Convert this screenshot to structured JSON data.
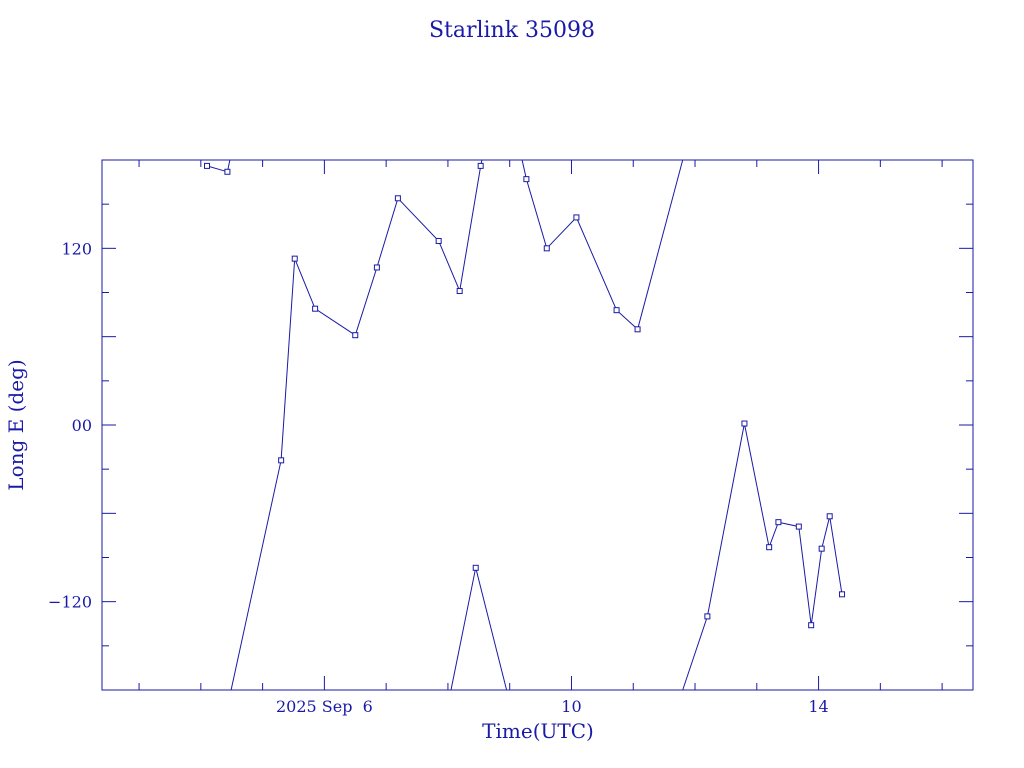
{
  "chart_data": {
    "type": "line",
    "title": "Starlink 35098",
    "xlabel": "Time(UTC)",
    "ylabel": "Long E (deg)",
    "x_unit": "days (Sep 2025, UTC)",
    "xlim": [
      2.4,
      16.5
    ],
    "ylim": [
      -180,
      180
    ],
    "x_ticks": [
      {
        "value": 6,
        "label": "2025 Sep  6"
      },
      {
        "value": 10,
        "label": "10"
      },
      {
        "value": 14,
        "label": "14"
      }
    ],
    "y_ticks": [
      {
        "value": 120,
        "label": "120"
      },
      {
        "value": 0,
        "label": "00"
      },
      {
        "value": -120,
        "label": "−120"
      }
    ],
    "grid": false,
    "color": "#1a1aa8",
    "series": [
      {
        "points": [
          [
            4.1,
            176
          ],
          [
            4.43,
            172
          ],
          [
            4.47,
            180
          ],
          [
            4.49,
            -180
          ],
          [
            5.3,
            -24
          ],
          [
            5.52,
            113
          ],
          [
            5.85,
            79
          ],
          [
            6.5,
            61
          ],
          [
            6.85,
            107
          ],
          [
            7.19,
            154
          ],
          [
            7.85,
            125
          ],
          [
            8.19,
            91
          ],
          [
            8.53,
            176
          ],
          [
            8.55,
            180
          ],
          [
            9.2,
            180
          ],
          [
            9.27,
            167
          ],
          [
            9.6,
            120
          ],
          [
            10.08,
            141
          ],
          [
            10.73,
            78
          ],
          [
            11.07,
            65
          ],
          [
            11.8,
            180
          ],
          [
            11.8,
            -180
          ],
          [
            12.2,
            -130
          ],
          [
            12.8,
            1
          ],
          [
            13.2,
            -83
          ],
          [
            13.35,
            -66
          ],
          [
            13.68,
            -69
          ],
          [
            13.88,
            -136
          ],
          [
            14.05,
            -84
          ],
          [
            14.18,
            -62
          ],
          [
            14.38,
            -115
          ]
        ],
        "breaks_after": [
          2,
          13,
          20
        ],
        "line_only": [
          [
            8.05,
            -180
          ],
          [
            8.45,
            -97
          ],
          [
            8.95,
            -180
          ]
        ]
      }
    ]
  }
}
